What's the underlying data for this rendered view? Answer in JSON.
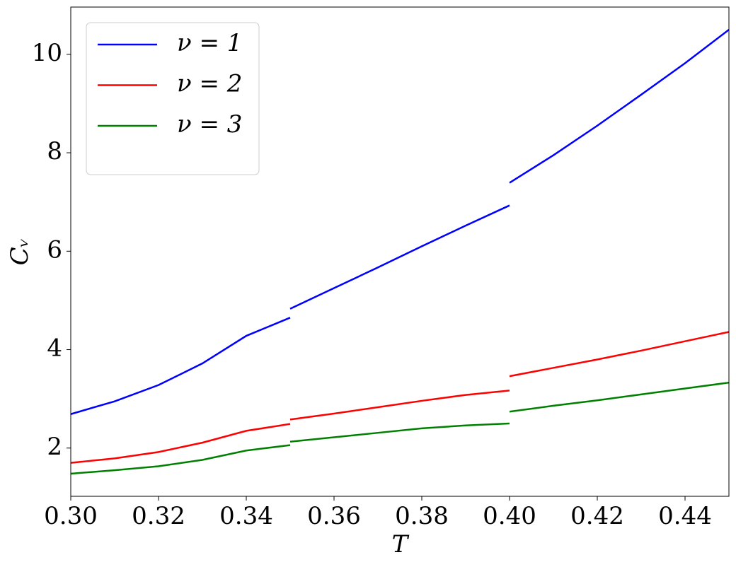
{
  "chart_data": {
    "type": "line",
    "x_label": "T",
    "y_label": "Cᵥ",
    "x": [
      0.3,
      0.31,
      0.32,
      0.33,
      0.34,
      0.35,
      null,
      0.35,
      0.36,
      0.37,
      0.38,
      0.39,
      0.4,
      null,
      0.4,
      0.41,
      0.42,
      0.43,
      0.44,
      0.45
    ],
    "series": [
      {
        "name": "ν = 1",
        "color": "#0000ff",
        "values": [
          2.69,
          2.95,
          3.28,
          3.72,
          4.28,
          4.65,
          null,
          4.83,
          5.25,
          5.67,
          6.1,
          6.52,
          6.93,
          null,
          7.39,
          7.95,
          8.55,
          9.18,
          9.82,
          10.5
        ]
      },
      {
        "name": "ν = 2",
        "color": "#ff0000",
        "values": [
          1.7,
          1.79,
          1.92,
          2.11,
          2.35,
          2.49,
          null,
          2.58,
          2.7,
          2.83,
          2.96,
          3.08,
          3.17,
          null,
          3.46,
          3.63,
          3.8,
          3.98,
          4.17,
          4.36
        ]
      },
      {
        "name": "ν = 3",
        "color": "#008000",
        "values": [
          1.48,
          1.55,
          1.63,
          1.76,
          1.95,
          2.06,
          null,
          2.13,
          2.22,
          2.31,
          2.4,
          2.46,
          2.5,
          null,
          2.74,
          2.86,
          2.97,
          3.09,
          3.21,
          3.33
        ]
      }
    ],
    "xlim": [
      0.3,
      0.45
    ],
    "ylim": [
      1.02,
      10.96
    ],
    "xticks": [
      {
        "value": 0.3,
        "label": "0.30"
      },
      {
        "value": 0.32,
        "label": "0.32"
      },
      {
        "value": 0.34,
        "label": "0.34"
      },
      {
        "value": 0.36,
        "label": "0.36"
      },
      {
        "value": 0.38,
        "label": "0.38"
      },
      {
        "value": 0.4,
        "label": "0.40"
      },
      {
        "value": 0.42,
        "label": "0.42"
      },
      {
        "value": 0.44,
        "label": "0.44"
      }
    ],
    "yticks": [
      2,
      4,
      6,
      8,
      10
    ],
    "legend": "upper-left",
    "grid": false
  }
}
